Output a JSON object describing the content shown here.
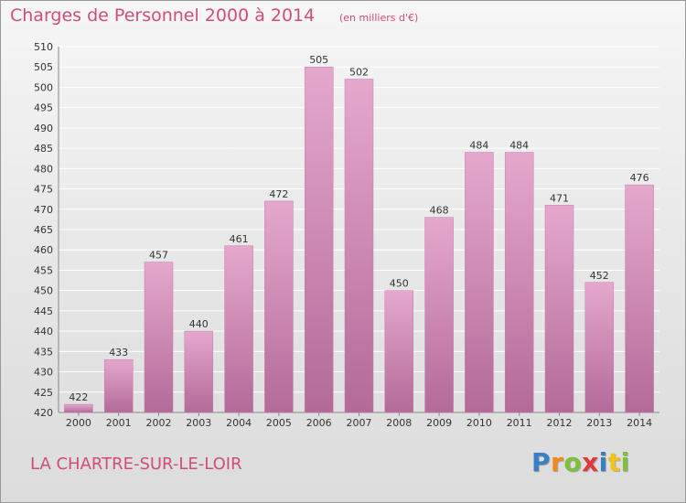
{
  "title": "Charges de Personnel 2000 à 2014",
  "subtitle": "(en milliers d'€)",
  "city": "LA CHARTRE-SUR-LE-LOIR",
  "logo": {
    "text": "Proxiti",
    "letters": [
      {
        "ch": "P",
        "color": "#3a7fc4"
      },
      {
        "ch": "r",
        "color": "#f08a1c"
      },
      {
        "ch": "o",
        "color": "#7fbf3a"
      },
      {
        "ch": "x",
        "color": "#e03a3a"
      },
      {
        "ch": "i",
        "color": "#3a7fc4"
      },
      {
        "ch": "t",
        "color": "#f0c21c"
      },
      {
        "ch": "i",
        "color": "#7fbf3a"
      }
    ]
  },
  "colors": {
    "bar_light": "#e5a8cd",
    "bar_dark": "#b36a99",
    "grid": "#ffffff",
    "text_accent": "#d04c7a"
  },
  "chart_data": {
    "type": "bar",
    "categories": [
      "2000",
      "2001",
      "2002",
      "2003",
      "2004",
      "2005",
      "2006",
      "2007",
      "2008",
      "2009",
      "2010",
      "2011",
      "2012",
      "2013",
      "2014"
    ],
    "values": [
      422,
      433,
      457,
      440,
      461,
      472,
      505,
      502,
      450,
      468,
      484,
      484,
      471,
      452,
      476
    ],
    "ylim": [
      420,
      510
    ],
    "ytick_step": 5,
    "grid": true,
    "legend": "none"
  }
}
